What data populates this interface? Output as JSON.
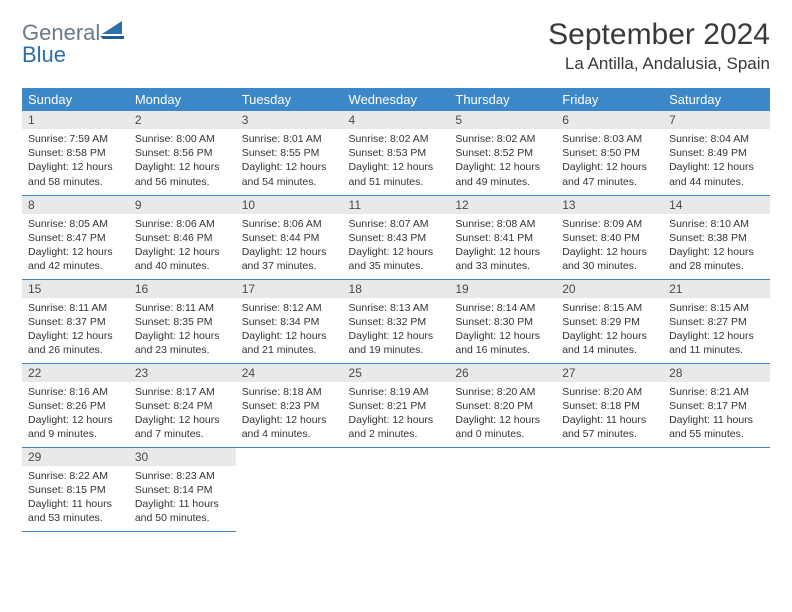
{
  "brand": {
    "part1": "General",
    "part2": "Blue"
  },
  "title": "September 2024",
  "location": "La Antilla, Andalusia, Spain",
  "colors": {
    "header_bg": "#3c87c7",
    "header_text": "#ffffff",
    "daynum_bg": "#e8e9ea",
    "daynum_text": "#4a4a4a",
    "body_text": "#333333",
    "rule": "#3c87c7",
    "logo_gray": "#6b7b86",
    "logo_blue": "#2f6fa8"
  },
  "typography": {
    "title_fontsize": 30,
    "location_fontsize": 17,
    "dayheader_fontsize": 13,
    "daynum_fontsize": 12,
    "dayinfo_fontsize": 10.5
  },
  "weekdays": [
    "Sunday",
    "Monday",
    "Tuesday",
    "Wednesday",
    "Thursday",
    "Friday",
    "Saturday"
  ],
  "layout": {
    "columns": 7,
    "rows": 5,
    "start_weekday_index": 0
  },
  "days": [
    {
      "n": 1,
      "sunrise": "7:59 AM",
      "sunset": "8:58 PM",
      "daylight": "12 hours and 58 minutes."
    },
    {
      "n": 2,
      "sunrise": "8:00 AM",
      "sunset": "8:56 PM",
      "daylight": "12 hours and 56 minutes."
    },
    {
      "n": 3,
      "sunrise": "8:01 AM",
      "sunset": "8:55 PM",
      "daylight": "12 hours and 54 minutes."
    },
    {
      "n": 4,
      "sunrise": "8:02 AM",
      "sunset": "8:53 PM",
      "daylight": "12 hours and 51 minutes."
    },
    {
      "n": 5,
      "sunrise": "8:02 AM",
      "sunset": "8:52 PM",
      "daylight": "12 hours and 49 minutes."
    },
    {
      "n": 6,
      "sunrise": "8:03 AM",
      "sunset": "8:50 PM",
      "daylight": "12 hours and 47 minutes."
    },
    {
      "n": 7,
      "sunrise": "8:04 AM",
      "sunset": "8:49 PM",
      "daylight": "12 hours and 44 minutes."
    },
    {
      "n": 8,
      "sunrise": "8:05 AM",
      "sunset": "8:47 PM",
      "daylight": "12 hours and 42 minutes."
    },
    {
      "n": 9,
      "sunrise": "8:06 AM",
      "sunset": "8:46 PM",
      "daylight": "12 hours and 40 minutes."
    },
    {
      "n": 10,
      "sunrise": "8:06 AM",
      "sunset": "8:44 PM",
      "daylight": "12 hours and 37 minutes."
    },
    {
      "n": 11,
      "sunrise": "8:07 AM",
      "sunset": "8:43 PM",
      "daylight": "12 hours and 35 minutes."
    },
    {
      "n": 12,
      "sunrise": "8:08 AM",
      "sunset": "8:41 PM",
      "daylight": "12 hours and 33 minutes."
    },
    {
      "n": 13,
      "sunrise": "8:09 AM",
      "sunset": "8:40 PM",
      "daylight": "12 hours and 30 minutes."
    },
    {
      "n": 14,
      "sunrise": "8:10 AM",
      "sunset": "8:38 PM",
      "daylight": "12 hours and 28 minutes."
    },
    {
      "n": 15,
      "sunrise": "8:11 AM",
      "sunset": "8:37 PM",
      "daylight": "12 hours and 26 minutes."
    },
    {
      "n": 16,
      "sunrise": "8:11 AM",
      "sunset": "8:35 PM",
      "daylight": "12 hours and 23 minutes."
    },
    {
      "n": 17,
      "sunrise": "8:12 AM",
      "sunset": "8:34 PM",
      "daylight": "12 hours and 21 minutes."
    },
    {
      "n": 18,
      "sunrise": "8:13 AM",
      "sunset": "8:32 PM",
      "daylight": "12 hours and 19 minutes."
    },
    {
      "n": 19,
      "sunrise": "8:14 AM",
      "sunset": "8:30 PM",
      "daylight": "12 hours and 16 minutes."
    },
    {
      "n": 20,
      "sunrise": "8:15 AM",
      "sunset": "8:29 PM",
      "daylight": "12 hours and 14 minutes."
    },
    {
      "n": 21,
      "sunrise": "8:15 AM",
      "sunset": "8:27 PM",
      "daylight": "12 hours and 11 minutes."
    },
    {
      "n": 22,
      "sunrise": "8:16 AM",
      "sunset": "8:26 PM",
      "daylight": "12 hours and 9 minutes."
    },
    {
      "n": 23,
      "sunrise": "8:17 AM",
      "sunset": "8:24 PM",
      "daylight": "12 hours and 7 minutes."
    },
    {
      "n": 24,
      "sunrise": "8:18 AM",
      "sunset": "8:23 PM",
      "daylight": "12 hours and 4 minutes."
    },
    {
      "n": 25,
      "sunrise": "8:19 AM",
      "sunset": "8:21 PM",
      "daylight": "12 hours and 2 minutes."
    },
    {
      "n": 26,
      "sunrise": "8:20 AM",
      "sunset": "8:20 PM",
      "daylight": "12 hours and 0 minutes."
    },
    {
      "n": 27,
      "sunrise": "8:20 AM",
      "sunset": "8:18 PM",
      "daylight": "11 hours and 57 minutes."
    },
    {
      "n": 28,
      "sunrise": "8:21 AM",
      "sunset": "8:17 PM",
      "daylight": "11 hours and 55 minutes."
    },
    {
      "n": 29,
      "sunrise": "8:22 AM",
      "sunset": "8:15 PM",
      "daylight": "11 hours and 53 minutes."
    },
    {
      "n": 30,
      "sunrise": "8:23 AM",
      "sunset": "8:14 PM",
      "daylight": "11 hours and 50 minutes."
    }
  ],
  "labels": {
    "sunrise_prefix": "Sunrise: ",
    "sunset_prefix": "Sunset: ",
    "daylight_prefix": "Daylight: "
  }
}
